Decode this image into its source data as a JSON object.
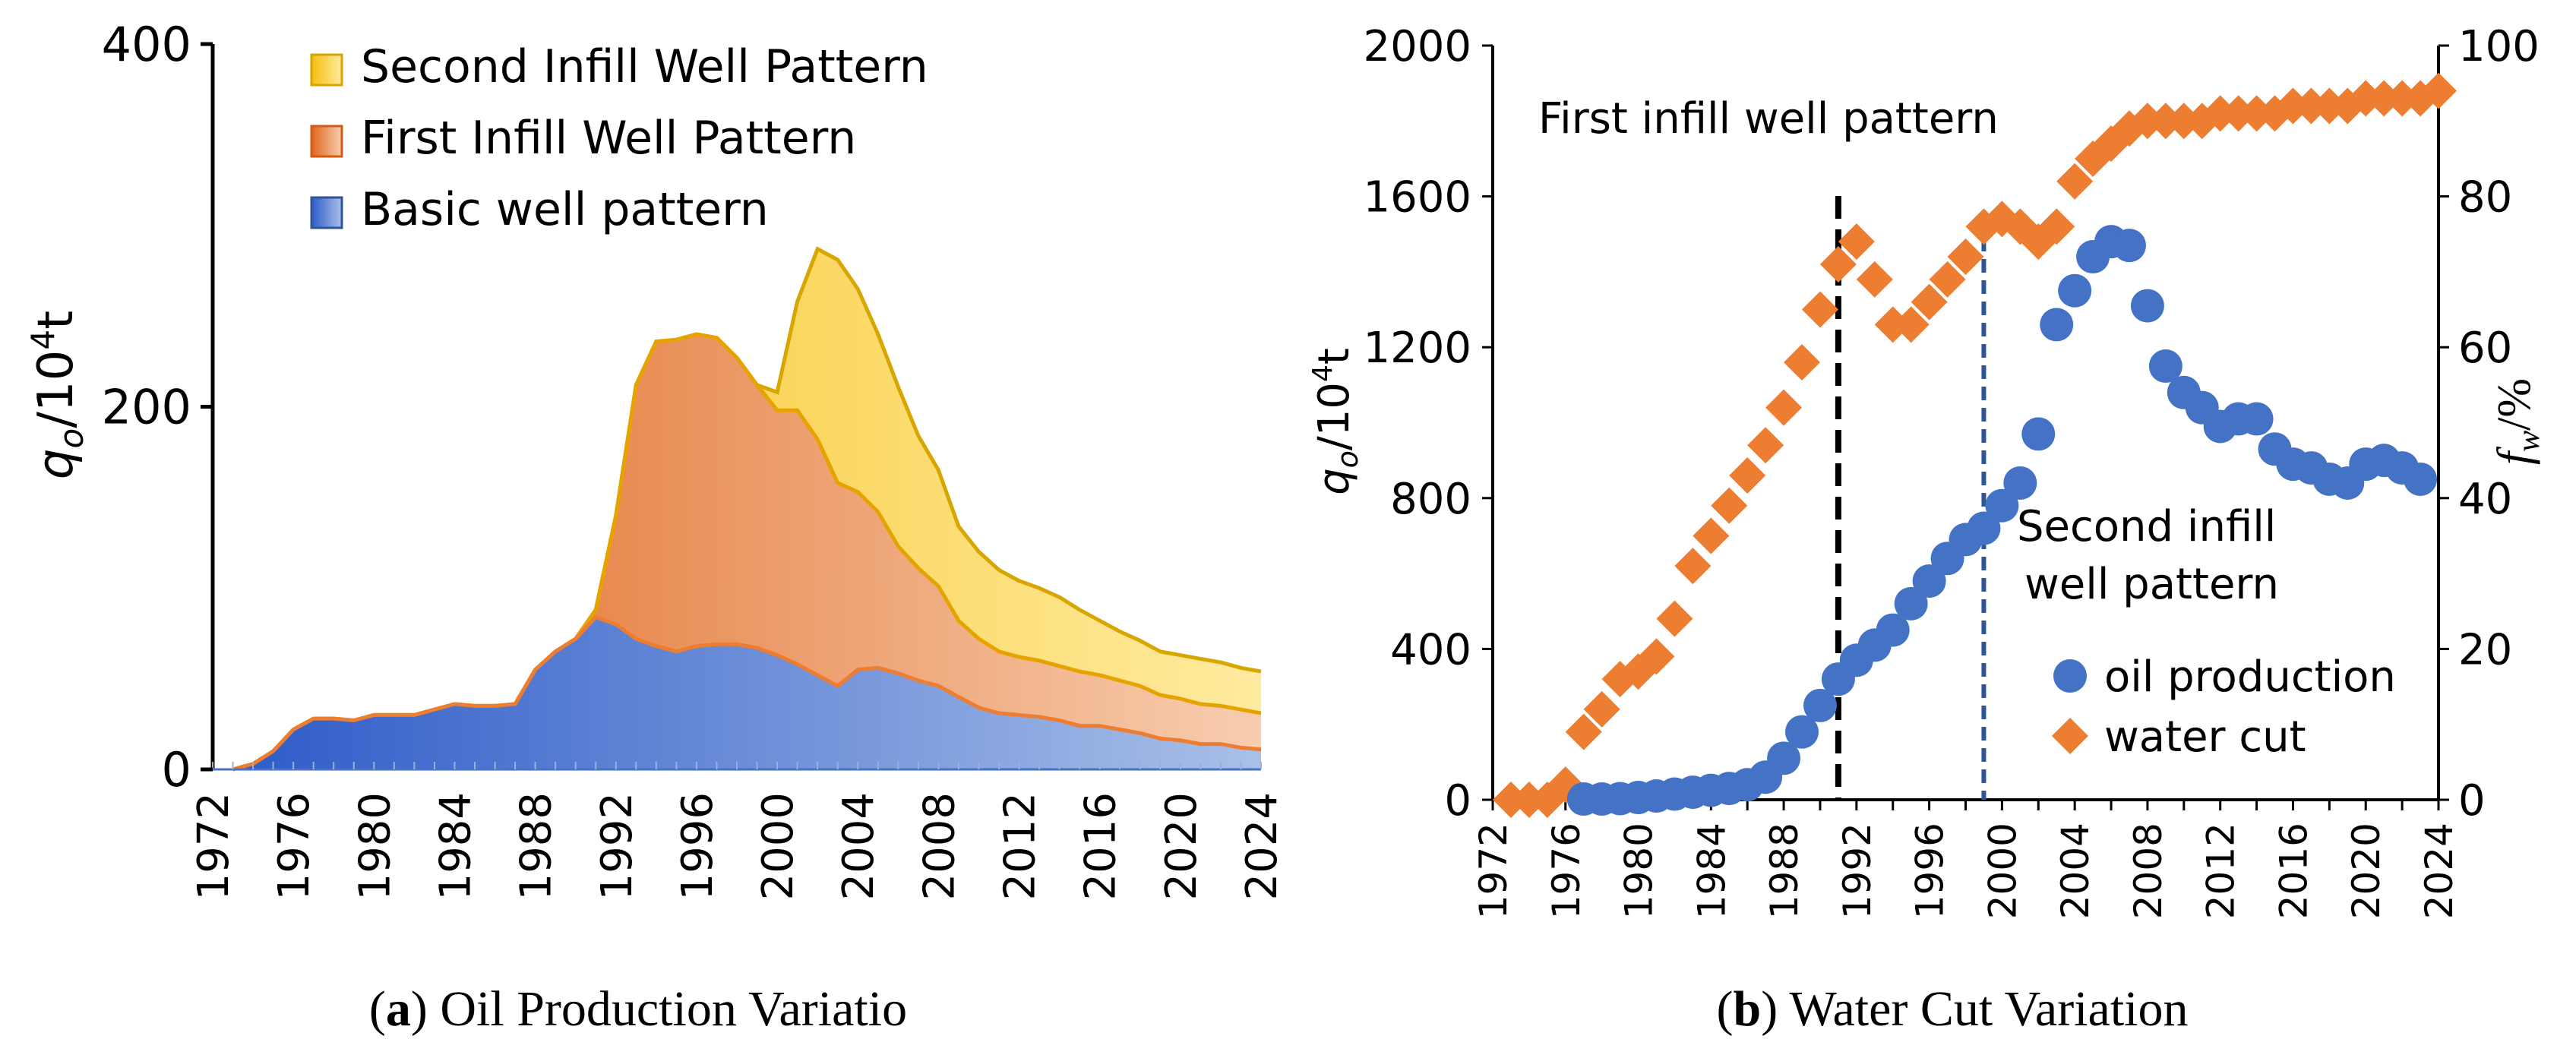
{
  "chart_data": [
    {
      "type": "area",
      "stacked": true,
      "caption_letter": "a",
      "caption_text": "Oil Production Variatio",
      "ylabel_main": "q",
      "ylabel_sub": "o",
      "ylabel_unit": "/10",
      "ylabel_exp": "4",
      "ylabel_tail": "t",
      "ylim": [
        0,
        400
      ],
      "yticks": [
        0,
        200,
        400
      ],
      "xlim": [
        1972,
        2024
      ],
      "xticks": [
        1972,
        1976,
        1980,
        1984,
        1988,
        1992,
        1996,
        2000,
        2004,
        2008,
        2012,
        2016,
        2020,
        2024
      ],
      "legend_position": "top-left",
      "x": [
        1973,
        1974,
        1975,
        1976,
        1977,
        1978,
        1979,
        1980,
        1981,
        1982,
        1983,
        1984,
        1985,
        1986,
        1987,
        1988,
        1989,
        1990,
        1991,
        1992,
        1993,
        1994,
        1995,
        1996,
        1997,
        1998,
        1999,
        2000,
        2001,
        2002,
        2003,
        2004,
        2005,
        2006,
        2007,
        2008,
        2009,
        2010,
        2011,
        2012,
        2013,
        2014,
        2015,
        2016,
        2017,
        2018,
        2019,
        2020,
        2021,
        2022,
        2023,
        2024
      ],
      "series": [
        {
          "name": "Basic well pattern",
          "color": "#4472C4",
          "values": [
            0,
            3,
            10,
            22,
            28,
            28,
            27,
            30,
            30,
            30,
            33,
            36,
            35,
            35,
            36,
            55,
            65,
            72,
            84,
            80,
            72,
            68,
            65,
            68,
            69,
            69,
            67,
            63,
            58,
            52,
            46,
            55,
            56,
            53,
            49,
            46,
            40,
            34,
            31,
            30,
            29,
            27,
            24,
            24,
            22,
            20,
            17,
            16,
            14,
            14,
            12,
            11
          ]
        },
        {
          "name": "First Infill Well Pattern",
          "color": "#ED7D31",
          "values": [
            0,
            0,
            0,
            0,
            0,
            0,
            0,
            0,
            0,
            0,
            0,
            0,
            0,
            0,
            0,
            0,
            0,
            0,
            4,
            60,
            140,
            168,
            172,
            172,
            169,
            158,
            145,
            135,
            140,
            130,
            112,
            98,
            86,
            70,
            62,
            55,
            42,
            38,
            34,
            32,
            31,
            30,
            30,
            28,
            27,
            26,
            24,
            23,
            22,
            21,
            21,
            20
          ]
        },
        {
          "name": "Second Infill Well Pattern",
          "color": "#FFC000",
          "values": [
            0,
            0,
            0,
            0,
            0,
            0,
            0,
            0,
            0,
            0,
            0,
            0,
            0,
            0,
            0,
            0,
            0,
            0,
            0,
            0,
            0,
            0,
            0,
            0,
            0,
            0,
            0,
            10,
            60,
            105,
            123,
            112,
            98,
            88,
            73,
            64,
            52,
            48,
            45,
            42,
            40,
            38,
            34,
            30,
            27,
            25,
            24,
            24,
            25,
            24,
            23,
            23
          ]
        }
      ]
    },
    {
      "type": "scatter",
      "caption_letter": "b",
      "caption_text": "Water Cut Variation",
      "ylabel_main": "q",
      "ylabel_sub": "o",
      "ylabel_unit": "/10",
      "ylabel_exp": "4",
      "ylabel_tail": "t",
      "y2label_main": "f",
      "y2label_sub": "w",
      "y2label_tail": "/%",
      "ylim": [
        0,
        2000
      ],
      "yticks": [
        0,
        400,
        800,
        1200,
        1600,
        2000
      ],
      "y2lim": [
        0,
        100
      ],
      "y2ticks": [
        0,
        20,
        40,
        60,
        80,
        100
      ],
      "xlim": [
        1972,
        2024
      ],
      "xticks": [
        1972,
        1976,
        1980,
        1984,
        1988,
        1992,
        1996,
        2000,
        2004,
        2008,
        2012,
        2016,
        2020,
        2024
      ],
      "legend_position": "bottom-right",
      "annotations": [
        {
          "text": "First infill well pattern",
          "x": 1991,
          "line_color": "#000000"
        },
        {
          "text_line1": "Second infill",
          "text_line2": "well pattern",
          "x": 1999,
          "line_color": "#2F5597"
        }
      ],
      "series": [
        {
          "name": "oil production",
          "color": "#4472C4",
          "marker": "circle",
          "axis": "left",
          "x": [
            1977,
            1978,
            1979,
            1980,
            1981,
            1982,
            1983,
            1984,
            1985,
            1986,
            1987,
            1988,
            1989,
            1990,
            1991,
            1992,
            1993,
            1994,
            1995,
            1996,
            1997,
            1998,
            1999,
            2000,
            2001,
            2002,
            2003,
            2004,
            2005,
            2006,
            2007,
            2008,
            2009,
            2010,
            2011,
            2012,
            2013,
            2014,
            2015,
            2016,
            2017,
            2018,
            2019,
            2020,
            2021,
            2022,
            2023
          ],
          "values": [
            2,
            2,
            3,
            6,
            10,
            15,
            20,
            25,
            30,
            40,
            60,
            110,
            180,
            250,
            320,
            370,
            410,
            450,
            520,
            580,
            640,
            690,
            720,
            780,
            840,
            970,
            1260,
            1350,
            1440,
            1480,
            1470,
            1310,
            1150,
            1080,
            1040,
            990,
            1010,
            1010,
            930,
            890,
            880,
            850,
            840,
            890,
            900,
            880,
            850
          ]
        },
        {
          "name": "water cut",
          "color": "#ED7D31",
          "marker": "diamond",
          "axis": "right",
          "x": [
            1973,
            1974,
            1975,
            1976,
            1977,
            1978,
            1979,
            1980,
            1981,
            1982,
            1983,
            1984,
            1985,
            1986,
            1987,
            1988,
            1989,
            1990,
            1991,
            1992,
            1993,
            1994,
            1995,
            1996,
            1997,
            1998,
            1999,
            2000,
            2001,
            2002,
            2003,
            2004,
            2005,
            2006,
            2007,
            2008,
            2009,
            2010,
            2011,
            2012,
            2013,
            2014,
            2015,
            2016,
            2017,
            2018,
            2019,
            2020,
            2021,
            2022,
            2023,
            2024
          ],
          "values": [
            0,
            0,
            0,
            2,
            9,
            12,
            16,
            17,
            19,
            24,
            31,
            35,
            39,
            43,
            47,
            52,
            58,
            65,
            71,
            74,
            69,
            63,
            63,
            66,
            69,
            72,
            76,
            77,
            76,
            74,
            76,
            82,
            85,
            87,
            89,
            90,
            90,
            90,
            90,
            91,
            91,
            91,
            91,
            92,
            92,
            92,
            92,
            93,
            93,
            93,
            93,
            94
          ]
        }
      ]
    }
  ]
}
